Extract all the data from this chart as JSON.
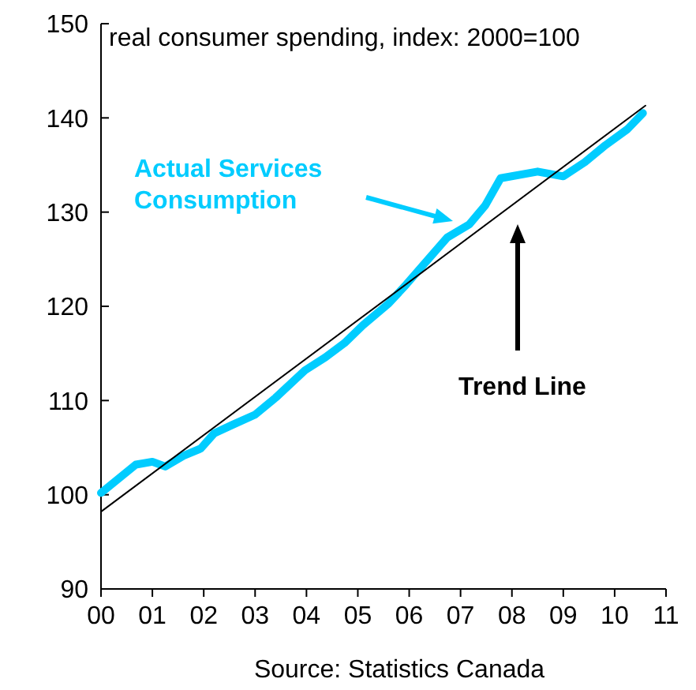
{
  "chart_data": {
    "type": "line",
    "title": "real consumer spending, index: 2000=100",
    "xlim": [
      0,
      11
    ],
    "xticks": [
      {
        "value": 0,
        "label": "00"
      },
      {
        "value": 1,
        "label": "01"
      },
      {
        "value": 2,
        "label": "02"
      },
      {
        "value": 3,
        "label": "03"
      },
      {
        "value": 4,
        "label": "04"
      },
      {
        "value": 5,
        "label": "05"
      },
      {
        "value": 6,
        "label": "06"
      },
      {
        "value": 7,
        "label": "07"
      },
      {
        "value": 8,
        "label": "08"
      },
      {
        "value": 9,
        "label": "09"
      },
      {
        "value": 10,
        "label": "10"
      },
      {
        "value": 11,
        "label": "11"
      }
    ],
    "ylim": [
      90,
      150
    ],
    "yticks": [
      90,
      100,
      110,
      120,
      130,
      140,
      150
    ],
    "grid": false,
    "series": [
      {
        "name": "Actual Services Consumption",
        "color": "#00ccff",
        "x": [
          0,
          0.68,
          1,
          1.25,
          1.63,
          1.94,
          2.2,
          2.55,
          3,
          3.4,
          3.97,
          4.37,
          4.74,
          5.1,
          5.6,
          5.94,
          6.74,
          7.17,
          7.48,
          7.78,
          8.5,
          9,
          9.42,
          9.82,
          10.25,
          10.55
        ],
        "values": [
          100.2,
          103.2,
          103.5,
          103,
          104.2,
          104.9,
          106.5,
          107.4,
          108.5,
          110.3,
          113.2,
          114.6,
          116.1,
          118,
          120.3,
          122.3,
          127.3,
          128.7,
          130.7,
          133.6,
          134.3,
          133.8,
          135.3,
          137.1,
          138.8,
          140.5
        ]
      },
      {
        "name": "Trend Line",
        "color": "#000000",
        "x": [
          0,
          10.6
        ],
        "values": [
          98.2,
          141.3
        ]
      }
    ],
    "annotations": [
      "Source: Statistics Canada"
    ]
  }
}
